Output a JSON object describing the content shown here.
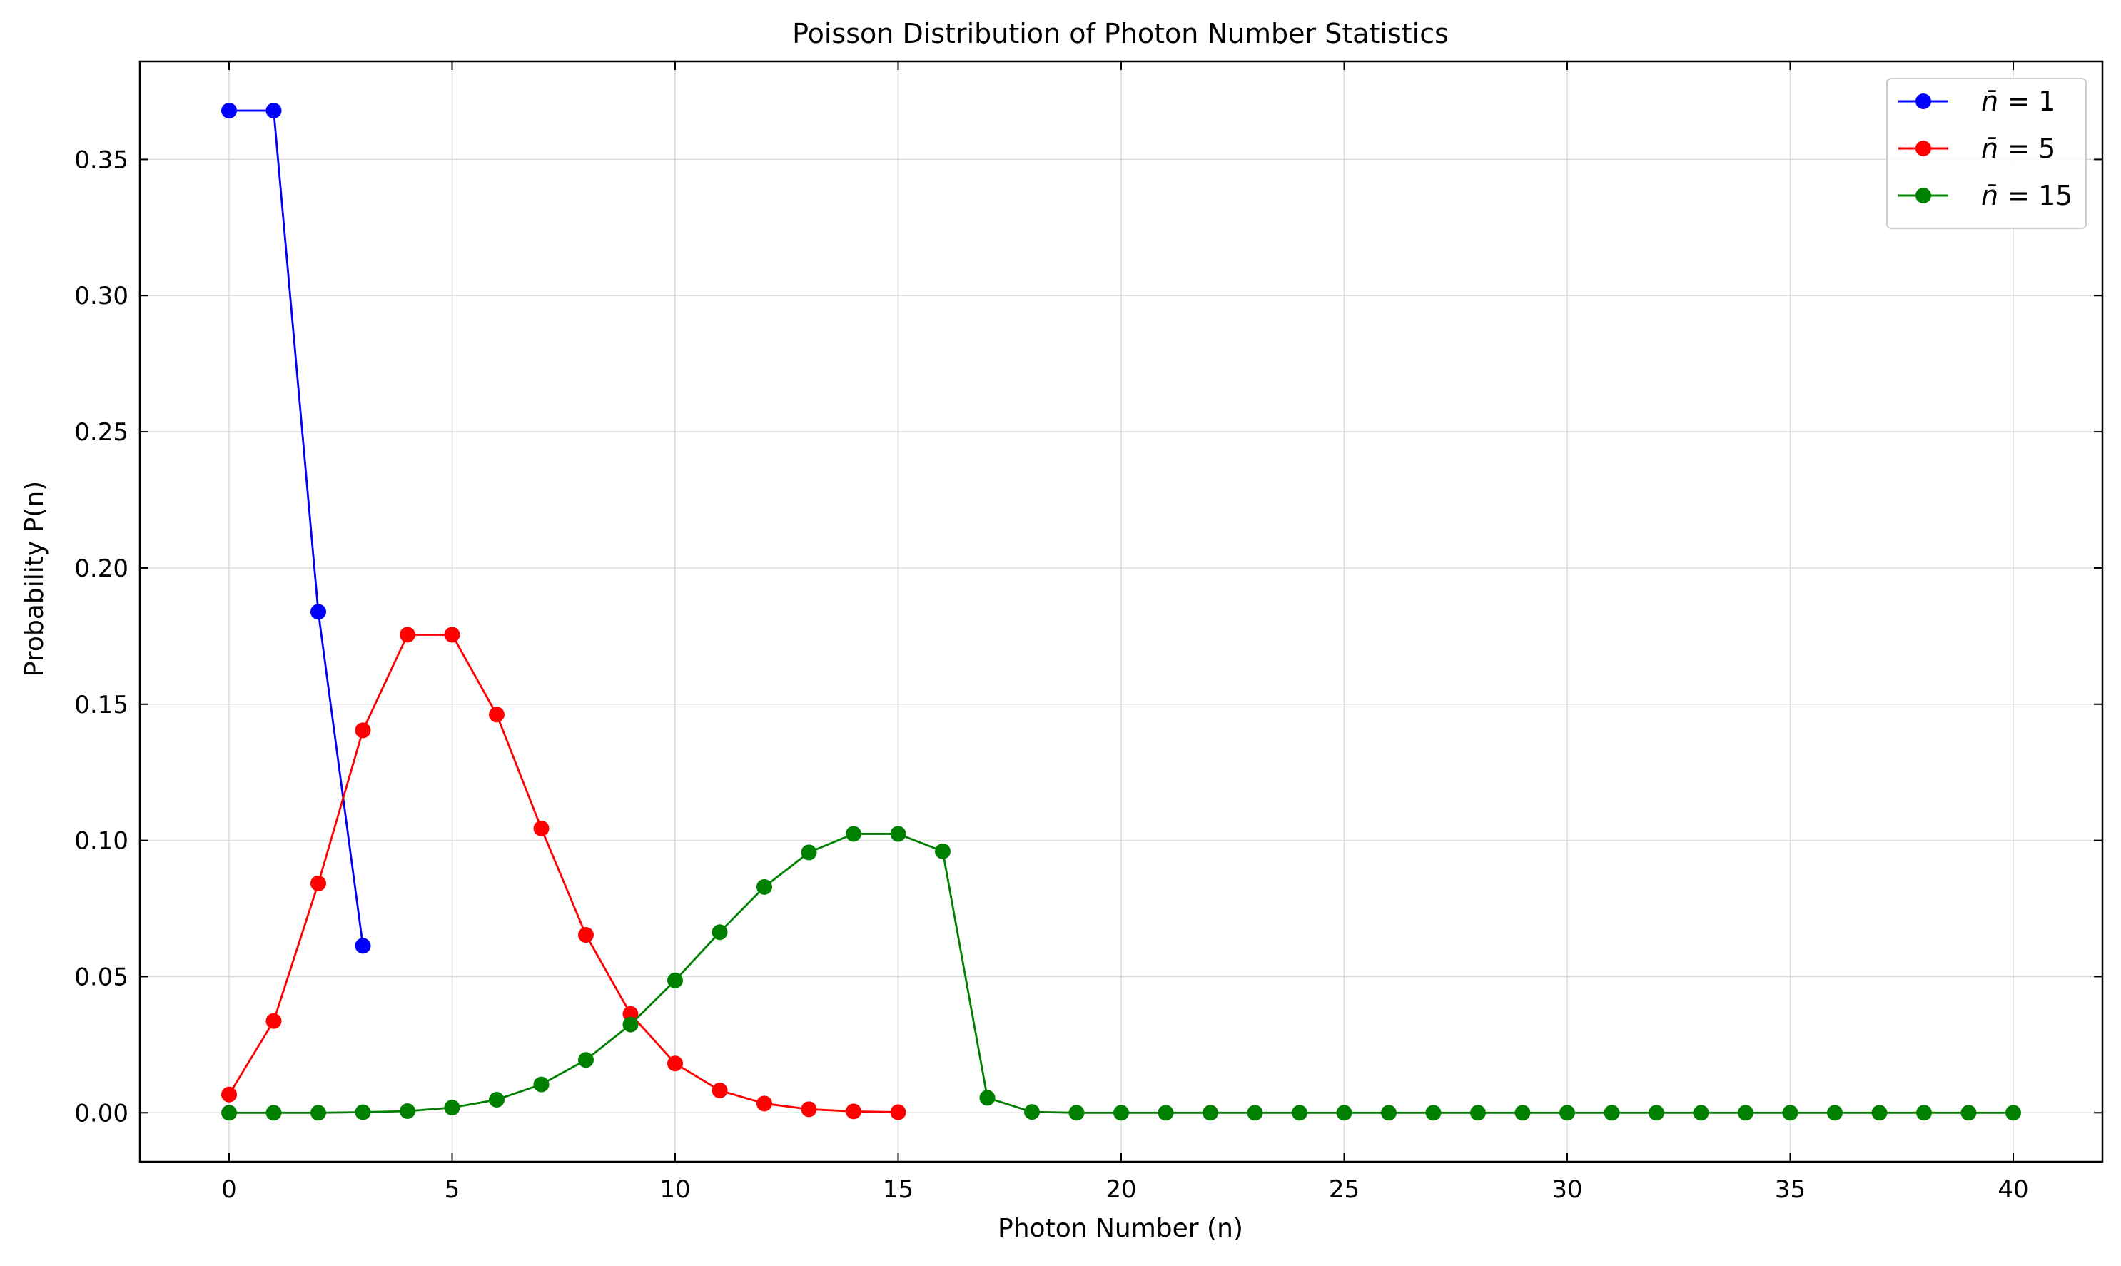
{
  "chart_data": {
    "type": "line",
    "title": "Poisson Distribution of Photon Number Statistics",
    "xlabel": "Photon Number (n)",
    "ylabel": "Probability P(n)",
    "xlim": [
      -2,
      42
    ],
    "ylim": [
      -0.018,
      0.386
    ],
    "xticks": [
      0,
      5,
      10,
      15,
      20,
      25,
      30,
      35,
      40
    ],
    "xtick_labels": [
      "0",
      "5",
      "10",
      "15",
      "20",
      "25",
      "30",
      "35",
      "40"
    ],
    "yticks": [
      0.0,
      0.05,
      0.1,
      0.15,
      0.2,
      0.25,
      0.3,
      0.35
    ],
    "ytick_labels": [
      "0.00",
      "0.05",
      "0.10",
      "0.15",
      "0.20",
      "0.25",
      "0.30",
      "0.35"
    ],
    "grid": true,
    "legend_position": "top-right",
    "series": [
      {
        "name": "n̄ = 1",
        "legend_var": "n̄",
        "legend_eq": "= 1",
        "color": "#0000ff",
        "x": [
          0,
          1,
          2,
          3
        ],
        "y": [
          0.3679,
          0.3679,
          0.1839,
          0.0613
        ]
      },
      {
        "name": "n̄ = 5",
        "legend_var": "n̄",
        "legend_eq": "= 5",
        "color": "#ff0000",
        "x": [
          0,
          1,
          2,
          3,
          4,
          5,
          6,
          7,
          8,
          9,
          10,
          11,
          12,
          13,
          14,
          15
        ],
        "y": [
          0.0067,
          0.0337,
          0.0842,
          0.1404,
          0.1755,
          0.1755,
          0.1462,
          0.1044,
          0.0653,
          0.0363,
          0.0181,
          0.0082,
          0.0034,
          0.0013,
          0.0005,
          0.0002
        ]
      },
      {
        "name": "n̄ = 15",
        "legend_var": "n̄",
        "legend_eq": "= 15",
        "color": "#008000",
        "x": [
          0,
          1,
          2,
          3,
          4,
          5,
          6,
          7,
          8,
          9,
          10,
          11,
          12,
          13,
          14,
          15,
          16,
          17,
          18,
          19,
          20,
          21,
          22,
          23,
          24,
          25,
          26,
          27,
          28,
          29,
          30,
          31,
          32,
          33,
          34,
          35,
          36,
          37,
          38,
          39,
          40
        ],
        "y": [
          0.0,
          0.0,
          0.0,
          0.0002,
          0.0006,
          0.0019,
          0.0048,
          0.0104,
          0.0194,
          0.0324,
          0.0486,
          0.0663,
          0.0829,
          0.0956,
          0.1024,
          0.1024,
          0.096,
          0.0055,
          0.0003,
          0.0,
          0.0,
          0.0,
          0.0,
          0.0,
          0.0,
          0.0,
          0.0,
          0.0,
          0.0,
          0.0,
          0.0,
          0.0,
          0.0,
          0.0,
          0.0,
          0.0,
          0.0,
          0.0,
          0.0,
          0.0,
          0.0
        ]
      }
    ]
  }
}
